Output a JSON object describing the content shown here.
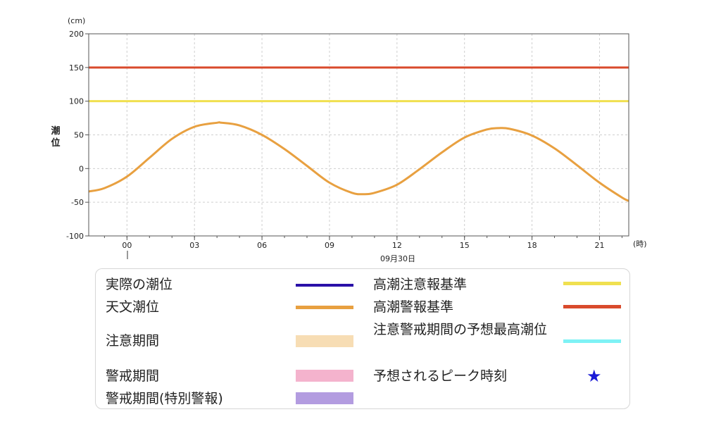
{
  "chart_data": {
    "type": "line",
    "y_unit": "(cm)",
    "x_unit": "(時)",
    "ylabel": "潮位",
    "date_label": "09月30日",
    "ylim": [
      -100,
      200
    ],
    "yticks": [
      "200",
      "150",
      "100",
      "50",
      "0",
      "-50",
      "-100"
    ],
    "yticks_values": [
      200,
      150,
      100,
      50,
      0,
      -50,
      -100
    ],
    "xticks": [
      "00",
      "03",
      "06",
      "09",
      "12",
      "15",
      "18",
      "21"
    ],
    "xticks_hours": [
      0,
      3,
      6,
      9,
      12,
      15,
      18,
      21
    ],
    "xlim_hours": [
      -1.7,
      22.3
    ],
    "grid": true,
    "series": [
      {
        "name": "天文潮位",
        "color": "#e8a040",
        "x_hours": [
          -1.7,
          -1,
          0,
          1,
          2,
          3,
          4,
          4.2,
          5,
          6,
          7,
          8,
          9,
          10,
          10.5,
          11,
          12,
          13,
          14,
          15,
          16,
          16.5,
          17,
          18,
          19,
          20,
          21,
          22,
          22.3
        ],
        "values": [
          -34,
          -29,
          -12,
          16,
          44,
          62,
          68,
          68,
          64,
          50,
          29,
          4,
          -21,
          -36,
          -38,
          -36,
          -24,
          -1,
          24,
          46,
          58,
          60,
          59,
          49,
          30,
          5,
          -21,
          -43,
          -48
        ]
      },
      {
        "name": "高潮注意報基準",
        "color": "#f0e050",
        "x_hours": [
          -1.7,
          22.3
        ],
        "values": [
          100,
          100
        ]
      },
      {
        "name": "高潮警報基準",
        "color": "#d94a2c",
        "x_hours": [
          -1.7,
          22.3
        ],
        "values": [
          150,
          150
        ]
      }
    ]
  },
  "legend": {
    "items": [
      {
        "label": "実際の潮位",
        "color": "#2a10a8",
        "kind": "line"
      },
      {
        "label": "天文潮位",
        "color": "#e8a040",
        "kind": "line"
      },
      {
        "label": "注意期間",
        "color": "#f7ddb4",
        "kind": "box"
      },
      {
        "label": "警戒期間",
        "color": "#f4b3cd",
        "kind": "box"
      },
      {
        "label": "警戒期間(特別警報)",
        "color": "#b39ce0",
        "kind": "box"
      },
      {
        "label": "高潮注意報基準",
        "color": "#f0e050",
        "kind": "line"
      },
      {
        "label": "高潮警報基準",
        "color": "#d94a2c",
        "kind": "line"
      },
      {
        "label": "注意警戒期間の予想最高潮位",
        "color": "#7ef2f5",
        "kind": "line"
      },
      {
        "label": "予想されるピーク時刻",
        "color": "#1a1ad6",
        "kind": "star",
        "icon": "star-icon"
      }
    ]
  }
}
